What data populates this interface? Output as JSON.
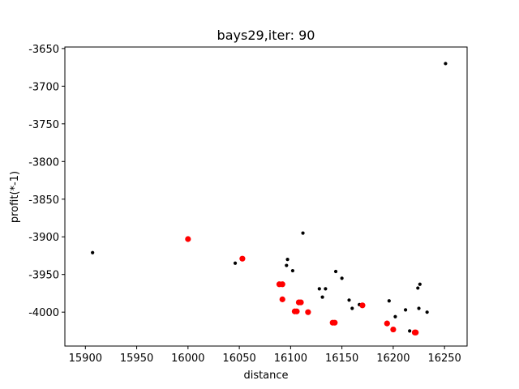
{
  "chart_data": {
    "type": "scatter",
    "title": "bays29,iter: 90",
    "xlabel": "distance",
    "ylabel": "profit(*-1)",
    "xlim": [
      15880,
      16272
    ],
    "ylim": [
      -4045,
      -3648
    ],
    "xticks": [
      15900,
      15950,
      16000,
      16050,
      16100,
      16150,
      16200,
      16250
    ],
    "yticks": [
      -3650,
      -3700,
      -3750,
      -3800,
      -3850,
      -3900,
      -3950,
      -4000
    ],
    "grid": false,
    "series": [
      {
        "color": "#000000",
        "marker": "small-dot",
        "points": [
          [
            15907,
            -3921
          ],
          [
            16046,
            -3935
          ],
          [
            16097,
            -3930
          ],
          [
            16096,
            -3938
          ],
          [
            16102,
            -3945
          ],
          [
            16112,
            -3895
          ],
          [
            16128,
            -3969
          ],
          [
            16131,
            -3980
          ],
          [
            16134,
            -3969
          ],
          [
            16144,
            -3946
          ],
          [
            16150,
            -3955
          ],
          [
            16157,
            -3984
          ],
          [
            16160,
            -3995
          ],
          [
            16167,
            -3990
          ],
          [
            16196,
            -3985
          ],
          [
            16202,
            -4006
          ],
          [
            16212,
            -3997
          ],
          [
            16216,
            -4025
          ],
          [
            16224,
            -3968
          ],
          [
            16226,
            -3963
          ],
          [
            16225,
            -3995
          ],
          [
            16233,
            -4000
          ],
          [
            16251,
            -3670
          ]
        ]
      },
      {
        "color": "#ff0000",
        "marker": "large-dot",
        "points": [
          [
            16000,
            -3903
          ],
          [
            16053,
            -3929
          ],
          [
            16089,
            -3963
          ],
          [
            16092,
            -3963
          ],
          [
            16092,
            -3983
          ],
          [
            16104,
            -3999
          ],
          [
            16106,
            -3999
          ],
          [
            16108,
            -3987
          ],
          [
            16110,
            -3987
          ],
          [
            16117,
            -4000
          ],
          [
            16141,
            -4014
          ],
          [
            16143,
            -4014
          ],
          [
            16170,
            -3991
          ],
          [
            16194,
            -4015
          ],
          [
            16200,
            -4023
          ],
          [
            16221,
            -4027
          ],
          [
            16222,
            -4027
          ]
        ]
      }
    ]
  }
}
